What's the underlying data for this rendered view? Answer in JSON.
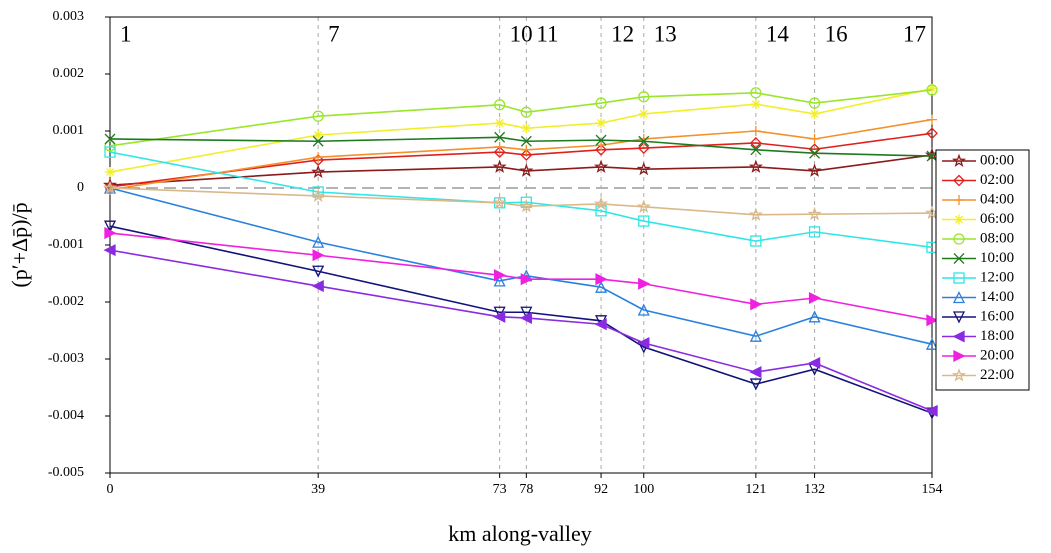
{
  "chart_data": {
    "type": "line",
    "x_label": "km along-valley",
    "y_label": "(p′+Δp̄)/p̄",
    "x": [
      0,
      39,
      73,
      78,
      92,
      100,
      121,
      132,
      154
    ],
    "xlim": [
      0,
      154
    ],
    "xticks": [
      0,
      39,
      73,
      78,
      92,
      100,
      121,
      132,
      154
    ],
    "ylim": [
      -0.005,
      0.003
    ],
    "yticks": [
      0.003,
      0.002,
      0.001,
      0,
      -0.001,
      -0.002,
      -0.003,
      -0.004,
      -0.005
    ],
    "stations": [
      {
        "x": 0,
        "label": "1"
      },
      {
        "x": 39,
        "label": "7"
      },
      {
        "x": 73,
        "label": "10"
      },
      {
        "x": 78,
        "label": "11"
      },
      {
        "x": 92,
        "label": "12"
      },
      {
        "x": 100,
        "label": "13"
      },
      {
        "x": 121,
        "label": "14"
      },
      {
        "x": 132,
        "label": "16"
      },
      {
        "x": 154,
        "label": "17"
      }
    ],
    "series": [
      {
        "name": "00:00",
        "color": "#8b1a1a",
        "marker": "star",
        "values": [
          5e-05,
          0.00028,
          0.00037,
          0.0003,
          0.00037,
          0.00033,
          0.00037,
          0.0003,
          0.00058
        ]
      },
      {
        "name": "02:00",
        "color": "#e0201c",
        "marker": "diamond",
        "values": [
          2e-05,
          0.00049,
          0.00063,
          0.00058,
          0.00067,
          0.0007,
          0.00079,
          0.00068,
          0.00096
        ]
      },
      {
        "name": "04:00",
        "color": "#f5902a",
        "marker": "plus",
        "values": [
          -3e-05,
          0.00054,
          0.00072,
          0.00067,
          0.00075,
          0.00086,
          0.001,
          0.00086,
          0.0012
        ]
      },
      {
        "name": "06:00",
        "color": "#f2ee2a",
        "marker": "asterisk",
        "values": [
          0.00028,
          0.00093,
          0.00114,
          0.00105,
          0.00114,
          0.0013,
          0.00147,
          0.0013,
          0.00174
        ]
      },
      {
        "name": "08:00",
        "color": "#99e62a",
        "marker": "circle",
        "values": [
          0.00074,
          0.00126,
          0.00146,
          0.00133,
          0.00149,
          0.0016,
          0.00167,
          0.00149,
          0.00172
        ]
      },
      {
        "name": "10:00",
        "color": "#1f7a1f",
        "marker": "x",
        "values": [
          0.00086,
          0.00082,
          0.00089,
          0.00082,
          0.00084,
          0.00082,
          0.00067,
          0.00061,
          0.00056
        ]
      },
      {
        "name": "12:00",
        "color": "#30e6e6",
        "marker": "square",
        "values": [
          0.00063,
          -7e-05,
          -0.00026,
          -0.00025,
          -0.0004,
          -0.00058,
          -0.00093,
          -0.00077,
          -0.00104
        ]
      },
      {
        "name": "14:00",
        "color": "#2a80e0",
        "marker": "triangle-up",
        "values": [
          0,
          -0.00095,
          -0.00163,
          -0.00154,
          -0.00174,
          -0.00214,
          -0.0026,
          -0.00226,
          -0.00274
        ]
      },
      {
        "name": "16:00",
        "color": "#12127a",
        "marker": "triangle-down",
        "values": [
          -0.00067,
          -0.00146,
          -0.00218,
          -0.00218,
          -0.00233,
          -0.00279,
          -0.00344,
          -0.00318,
          -0.00395
        ]
      },
      {
        "name": "18:00",
        "color": "#8a2be2",
        "marker": "triangle-left",
        "values": [
          -0.00109,
          -0.00172,
          -0.00226,
          -0.00228,
          -0.00239,
          -0.00272,
          -0.00323,
          -0.00307,
          -0.00391
        ]
      },
      {
        "name": "20:00",
        "color": "#f020e0",
        "marker": "triangle-right",
        "values": [
          -0.00079,
          -0.00118,
          -0.00153,
          -0.0016,
          -0.0016,
          -0.00168,
          -0.00204,
          -0.00193,
          -0.00232
        ]
      },
      {
        "name": "22:00",
        "color": "#d9b98a",
        "marker": "star",
        "values": [
          0,
          -0.00014,
          -0.00026,
          -0.00032,
          -0.00028,
          -0.00033,
          -0.00047,
          -0.00046,
          -0.00044
        ]
      }
    ]
  }
}
